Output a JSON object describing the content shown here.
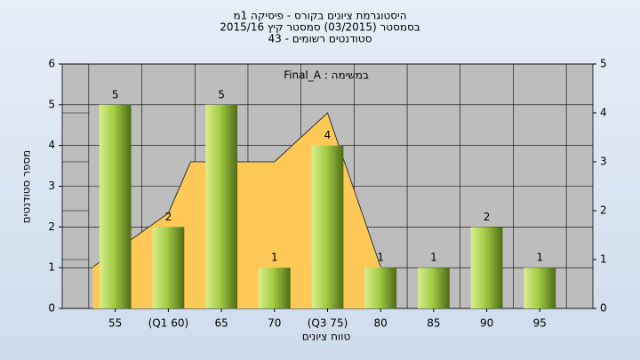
{
  "chart_data": {
    "type": "bar",
    "title": [
      "היסטוגרמת ציונים בקורס - פיסיקה 1מ",
      "בסמסטר  (03/2015)  סמסטר קיץ  2015/16",
      "סטודנטים רשומים - 43"
    ],
    "annotation": "Final_A : במשימה",
    "x_label": "טווח ציונים",
    "y_label": "מספר סטודנטים",
    "categories": [
      "55",
      "(Q1 60)",
      "65",
      "70",
      "(Q3 75)",
      "80",
      "85",
      "90",
      "95"
    ],
    "values": [
      5,
      2,
      5,
      1,
      4,
      1,
      1,
      2,
      1
    ],
    "color": "#9bc23c",
    "area": {
      "color": "#ffc957",
      "axis": "y2",
      "x": [
        -0.42,
        1,
        1.42,
        3,
        4,
        5
      ],
      "values": [
        0.85,
        1.95,
        3,
        3,
        4,
        0.85
      ]
    },
    "ylim": [
      0,
      6
    ],
    "yticks": [
      0,
      1,
      2,
      3,
      4,
      5,
      6
    ],
    "y2lim": [
      0,
      5
    ],
    "y2ticks": [
      0,
      1,
      2,
      3,
      4,
      5
    ],
    "grid": true
  }
}
